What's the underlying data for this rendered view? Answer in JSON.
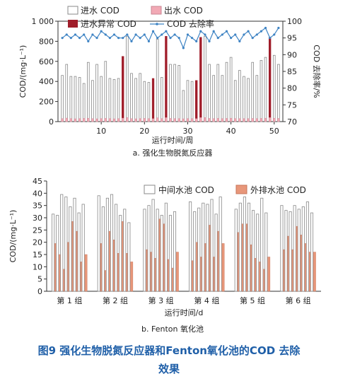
{
  "figure": {
    "caption_line1": "图9   强化生物脱氮反应器和Fenton氧化池的COD 去除",
    "caption_line2": "效果"
  },
  "chart_data": [
    {
      "type": "bar",
      "subtitle": "a. 强化生物脱氮反应器",
      "xlabel": "运行时间/周",
      "ylabel": "COD/(mg·L⁻¹)",
      "y2label": "COD 去除率/%",
      "xlim": [
        0,
        52
      ],
      "xticks": [
        10,
        20,
        30,
        40,
        50
      ],
      "ylim": [
        0,
        1000
      ],
      "yticks": [
        0,
        200,
        400,
        600,
        800,
        1000
      ],
      "ytick_labels": [
        "0",
        "200",
        "400",
        "600",
        "800",
        "1 000"
      ],
      "y2lim": [
        70,
        100
      ],
      "y2ticks": [
        70,
        75,
        80,
        85,
        90,
        95,
        100
      ],
      "legend": {
        "influent": "进水 COD",
        "effluent": "出水 COD",
        "abnormal": "进水异常 COD",
        "removal": "COD 去除率"
      },
      "colors": {
        "influent_fill": "#ffffff",
        "influent_edge": "#888888",
        "effluent": "#f2a9b5",
        "abnormal": "#a01d2a",
        "removal": "#3f84c4"
      },
      "weeks": [
        1,
        2,
        3,
        4,
        5,
        6,
        7,
        8,
        9,
        10,
        11,
        12,
        13,
        14,
        15,
        16,
        17,
        18,
        19,
        20,
        21,
        22,
        23,
        24,
        25,
        26,
        27,
        28,
        29,
        30,
        31,
        32,
        33,
        34,
        35,
        36,
        37,
        38,
        39,
        40,
        41,
        42,
        43,
        44,
        45,
        46,
        47,
        48,
        49,
        50,
        51
      ],
      "influent_cod": [
        460,
        570,
        450,
        450,
        440,
        380,
        590,
        410,
        570,
        450,
        600,
        430,
        420,
        430,
        650,
        850,
        480,
        430,
        480,
        400,
        390,
        430,
        820,
        440,
        850,
        570,
        570,
        560,
        310,
        410,
        400,
        410,
        840,
        850,
        570,
        460,
        570,
        460,
        590,
        640,
        410,
        510,
        450,
        430,
        590,
        460,
        610,
        640,
        840,
        660,
        570
      ],
      "abnormal_weeks": [
        15,
        22,
        25,
        32,
        33,
        49
      ],
      "effluent_cod": [
        30,
        35,
        30,
        28,
        30,
        32,
        34,
        30,
        28,
        30,
        32,
        30,
        28,
        30,
        35,
        40,
        30,
        28,
        30,
        32,
        30,
        30,
        38,
        30,
        40,
        32,
        30,
        30,
        28,
        30,
        30,
        30,
        40,
        40,
        32,
        30,
        32,
        30,
        32,
        34,
        30,
        30,
        30,
        30,
        32,
        30,
        32,
        34,
        40,
        34,
        32
      ],
      "removal_rate": [
        95,
        96,
        95,
        96,
        95,
        96,
        94,
        96,
        95,
        97,
        96,
        95,
        96,
        95,
        95,
        96,
        94,
        96,
        95,
        96,
        94,
        97,
        95,
        96,
        97,
        95,
        96,
        95,
        92,
        96,
        95,
        94,
        97,
        96,
        94,
        97,
        95,
        96,
        97,
        95,
        96,
        94,
        96,
        97,
        95,
        96,
        97,
        98,
        95,
        96,
        98
      ]
    },
    {
      "type": "bar",
      "subtitle": "b. Fenton 氧化池",
      "xlabel": "运行时间/d",
      "ylabel": "COD/(mg·L⁻¹)",
      "ylim": [
        0,
        45
      ],
      "yticks": [
        0,
        5,
        10,
        15,
        20,
        25,
        30,
        35,
        40,
        45
      ],
      "legend": {
        "middle": "中间水池 COD",
        "outlet": "外排水池 COD"
      },
      "colors": {
        "middle_fill": "#ffffff",
        "middle_edge": "#888888",
        "outlet": "#e8977a"
      },
      "groups": [
        {
          "label": "第 1 组",
          "middle": [
            31.5,
            31,
            39.5,
            38.5,
            34.5,
            38,
            32,
            35.5
          ],
          "outlet": [
            19.5,
            15,
            9,
            20,
            28.5,
            24.5,
            12,
            15
          ]
        },
        {
          "label": "第 2 组",
          "middle": [
            39,
            34.5,
            38,
            39.5,
            35.5,
            31,
            33.5,
            28
          ],
          "outlet": [
            19.5,
            8.5,
            24.5,
            21,
            15.5,
            28.5,
            15.5,
            12
          ]
        },
        {
          "label": "第 3 组",
          "middle": [
            33.5,
            35,
            37.5,
            33.5,
            31,
            36,
            31,
            32.5
          ],
          "outlet": [
            17,
            16,
            13.5,
            29.5,
            27.5,
            13,
            9.5,
            16
          ]
        },
        {
          "label": "第 4 组",
          "middle": [
            36.5,
            32.5,
            34,
            36,
            35.5,
            37.5,
            31.5,
            38.5
          ],
          "outlet": [
            12.5,
            20,
            14,
            19.5,
            27,
            14,
            24.5,
            19.5
          ]
        },
        {
          "label": "第 5 组",
          "middle": [
            33.5,
            36,
            38.5,
            36,
            33,
            31.5,
            38,
            32
          ],
          "outlet": [
            24,
            27.5,
            27.5,
            19,
            13.5,
            12,
            9,
            14
          ]
        },
        {
          "label": "第 6 组",
          "middle": [
            35,
            33,
            32.5,
            35,
            33.5,
            34.5,
            36.5,
            32
          ],
          "outlet": [
            17,
            22.5,
            17,
            26.5,
            23,
            19.5,
            16,
            16
          ]
        }
      ]
    }
  ]
}
